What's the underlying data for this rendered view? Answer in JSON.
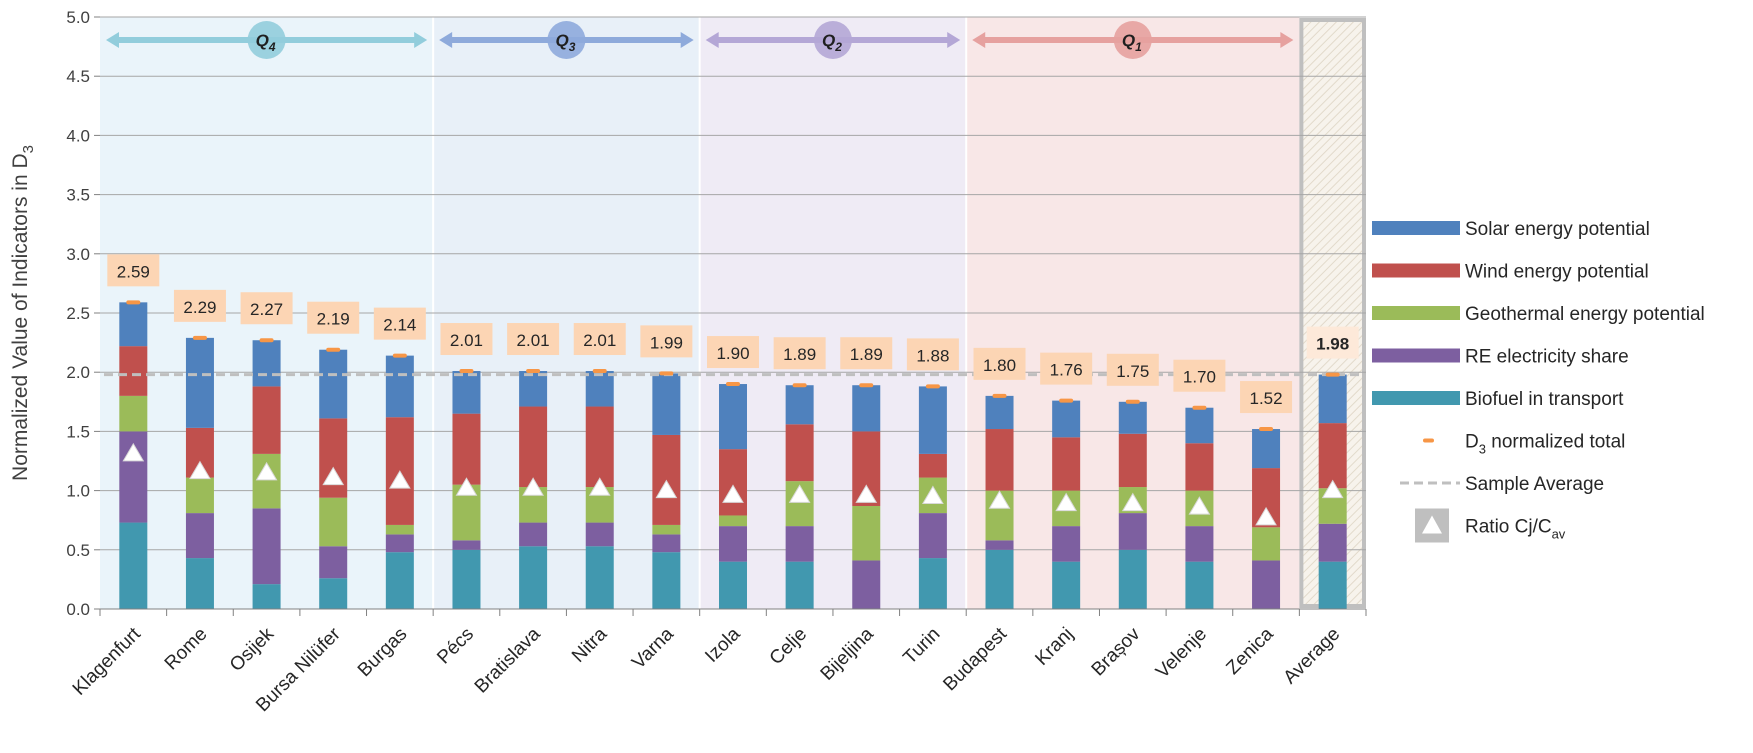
{
  "chart_data": {
    "type": "bar",
    "stacked": true,
    "ylabel": "Normalized Value of Indicators in D",
    "ylabel_sub": "3",
    "ylim": [
      0,
      5.0
    ],
    "ytick_step": 0.5,
    "ytick_labels": [
      "0.0",
      "0.5",
      "1.0",
      "1.5",
      "2.0",
      "2.5",
      "3.0",
      "3.5",
      "4.0",
      "4.5",
      "5.0"
    ],
    "grid": true,
    "legend_position": "right",
    "categories": [
      "Klagenfurt",
      "Rome",
      "Osijek",
      "Bursa Nilüfer",
      "Burgas",
      "Pécs",
      "Bratislava",
      "Nitra",
      "Varna",
      "Izola",
      "Celje",
      "Bijeljina",
      "Turin",
      "Budapest",
      "Kranj",
      "Brașov",
      "Velenje",
      "Zenica",
      "Average"
    ],
    "series": [
      {
        "name": "Biofuel in transport",
        "color": "#4198AF",
        "values": [
          0.73,
          0.43,
          0.21,
          0.26,
          0.48,
          0.5,
          0.53,
          0.53,
          0.48,
          0.4,
          0.4,
          0.0,
          0.43,
          0.5,
          0.4,
          0.5,
          0.4,
          0.0,
          0.4
        ]
      },
      {
        "name": "RE electricity share",
        "color": "#7D5FA0",
        "values": [
          0.77,
          0.38,
          0.64,
          0.27,
          0.15,
          0.08,
          0.2,
          0.2,
          0.15,
          0.3,
          0.3,
          0.41,
          0.38,
          0.08,
          0.3,
          0.31,
          0.3,
          0.41,
          0.32
        ]
      },
      {
        "name": "Geothermal energy potential",
        "color": "#9BBB59",
        "values": [
          0.3,
          0.3,
          0.46,
          0.41,
          0.08,
          0.47,
          0.3,
          0.3,
          0.08,
          0.09,
          0.38,
          0.46,
          0.3,
          0.42,
          0.3,
          0.22,
          0.3,
          0.28,
          0.3
        ]
      },
      {
        "name": "Wind energy potential",
        "color": "#C0504D",
        "values": [
          0.42,
          0.42,
          0.57,
          0.67,
          0.91,
          0.6,
          0.68,
          0.68,
          0.76,
          0.56,
          0.48,
          0.63,
          0.2,
          0.52,
          0.45,
          0.45,
          0.4,
          0.5,
          0.55
        ]
      },
      {
        "name": "Solar energy potential",
        "color": "#4F81BD",
        "values": [
          0.37,
          0.76,
          0.39,
          0.58,
          0.52,
          0.36,
          0.3,
          0.3,
          0.52,
          0.55,
          0.33,
          0.39,
          0.57,
          0.28,
          0.31,
          0.27,
          0.3,
          0.33,
          0.41
        ]
      }
    ],
    "totals": [
      2.59,
      2.29,
      2.27,
      2.19,
      2.14,
      2.01,
      2.01,
      2.01,
      1.99,
      1.9,
      1.89,
      1.89,
      1.88,
      1.8,
      1.76,
      1.75,
      1.7,
      1.52,
      1.98
    ],
    "total_labels": [
      "2.59",
      "2.29",
      "2.27",
      "2.19",
      "2.14",
      "2.01",
      "2.01",
      "2.01",
      "1.99",
      "1.90",
      "1.89",
      "1.89",
      "1.88",
      "1.80",
      "1.76",
      "1.75",
      "1.70",
      "1.52",
      "1.98"
    ],
    "ratio_markers": [
      1.31,
      1.16,
      1.15,
      1.11,
      1.08,
      1.02,
      1.02,
      1.02,
      1.0,
      0.96,
      0.96,
      0.96,
      0.95,
      0.91,
      0.89,
      0.89,
      0.86,
      0.77,
      1.0
    ],
    "sample_average": 1.98,
    "quartiles": [
      {
        "label": "Q",
        "sub": "4",
        "from": 0,
        "to": 4,
        "color": "#92CDDC",
        "band": "#EAF4FA"
      },
      {
        "label": "Q",
        "sub": "3",
        "from": 5,
        "to": 8,
        "color": "#8EAADB",
        "band": "#E8F0F8"
      },
      {
        "label": "Q",
        "sub": "2",
        "from": 9,
        "to": 12,
        "color": "#B4A7D6",
        "band": "#EFEBF5"
      },
      {
        "label": "Q",
        "sub": "1",
        "from": 13,
        "to": 17,
        "color": "#E6A19F",
        "band": "#F8E7E7"
      }
    ],
    "legend": [
      {
        "label": "Solar energy potential",
        "kind": "box",
        "color": "#4F81BD"
      },
      {
        "label": "Wind energy potential",
        "kind": "box",
        "color": "#C0504D"
      },
      {
        "label": "Geothermal energy potential",
        "kind": "box",
        "color": "#9BBB59"
      },
      {
        "label": "RE electricity share",
        "kind": "box",
        "color": "#7D5FA0"
      },
      {
        "label": "Biofuel in transport",
        "kind": "box",
        "color": "#4198AF"
      },
      {
        "label": "D",
        "sub": "3",
        "suffix": " normalized total",
        "kind": "dash",
        "color": "#F79646"
      },
      {
        "label": "Sample Average",
        "kind": "dashed-line",
        "color": "#BFBFBF"
      },
      {
        "label": "Ratio Cj/C",
        "sub": "av",
        "kind": "triangle",
        "color": "#BFBFBF"
      }
    ]
  }
}
